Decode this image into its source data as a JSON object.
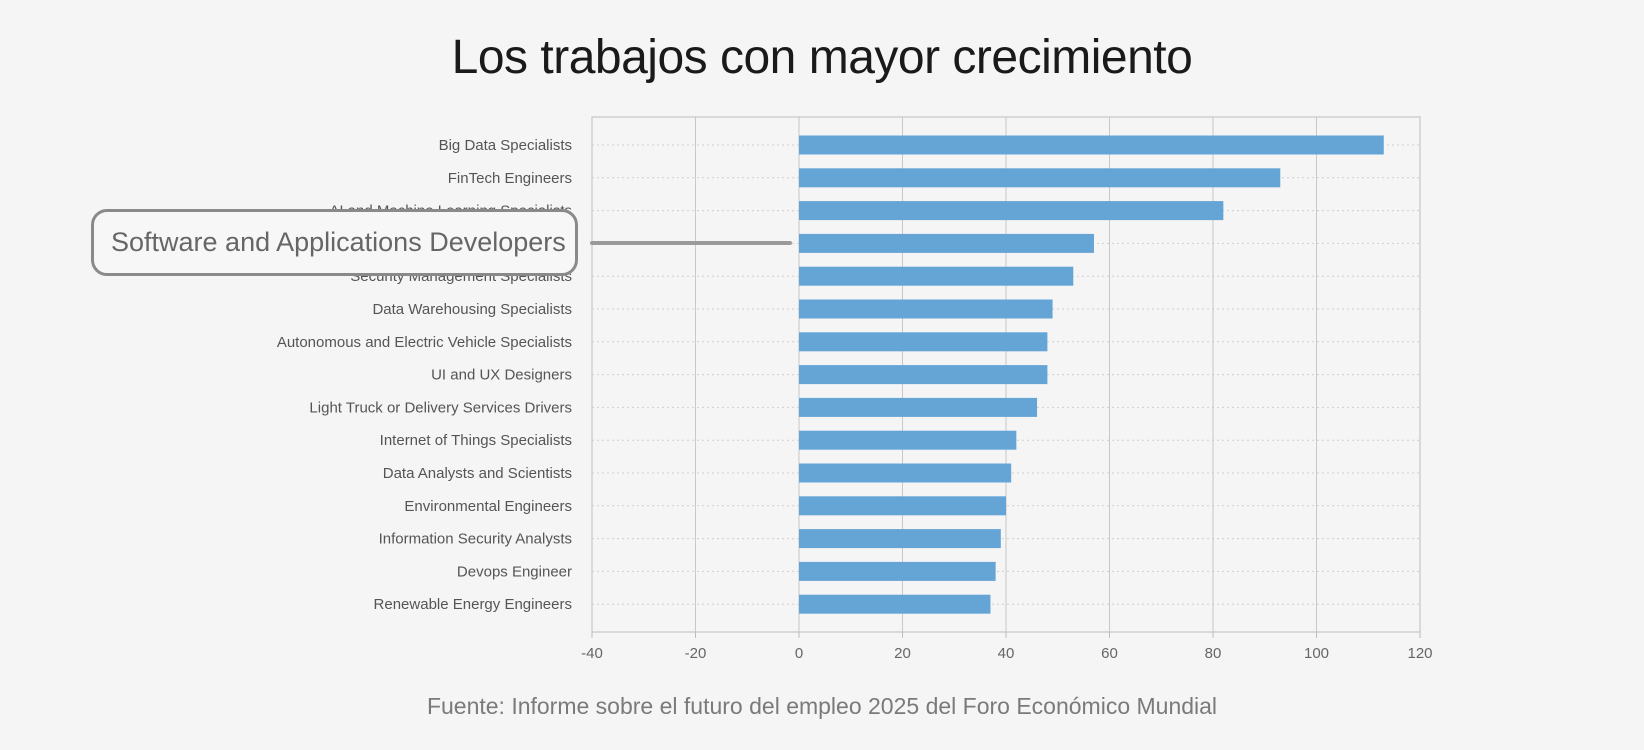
{
  "title": "Los trabajos con mayor crecimiento",
  "source": "Fuente: Informe sobre el futuro del empleo 2025 del Foro Económico Mundial",
  "callout": {
    "label": "Software and Applications Developers"
  },
  "colors": {
    "bar": "#65a5d6",
    "background": "#f5f5f5"
  },
  "chart_data": {
    "type": "bar",
    "orientation": "horizontal",
    "title": "Los trabajos con mayor crecimiento",
    "categories": [
      "Big Data Specialists",
      "FinTech Engineers",
      "AI and Machine Learning Specialists",
      "Software and Applications Developers",
      "Security Management Specialists",
      "Data Warehousing Specialists",
      "Autonomous and Electric Vehicle Specialists",
      "UI and UX Designers",
      "Light Truck or Delivery Services Drivers",
      "Internet of Things Specialists",
      "Data Analysts and Scientists",
      "Environmental Engineers",
      "Information Security Analysts",
      "Devops Engineer",
      "Renewable Energy Engineers"
    ],
    "values": [
      113,
      93,
      82,
      57,
      53,
      49,
      48,
      48,
      46,
      42,
      41,
      40,
      39,
      38,
      37
    ],
    "xlim": [
      -40,
      120
    ],
    "xticks": [
      -40,
      -20,
      0,
      20,
      40,
      60,
      80,
      100,
      120
    ],
    "xtick_labels": [
      "-40",
      "-20",
      "0",
      "20",
      "40",
      "60",
      "80",
      "100",
      "120"
    ],
    "grid": true,
    "legend": "none"
  }
}
